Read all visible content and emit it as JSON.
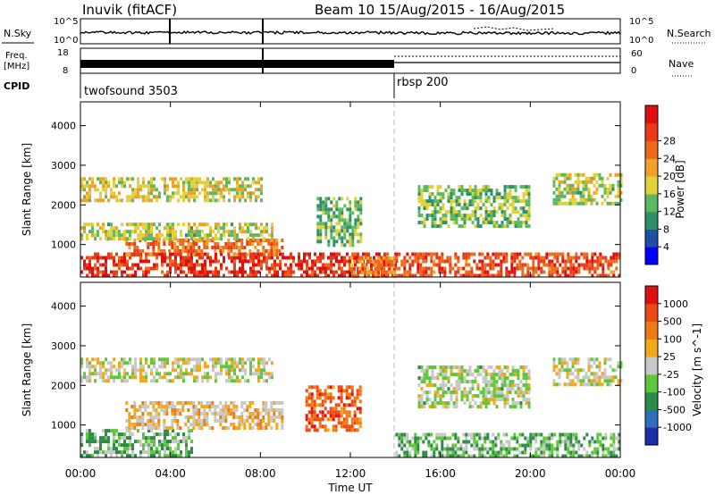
{
  "header": {
    "title": "Inuvik (fitACF)",
    "subtitle": "Beam 10  15/Aug/2015 - 16/Aug/2015"
  },
  "meta_panels": {
    "nsky_label": "N.Sky",
    "nsearch_label": "N.Search",
    "freq_label_line1": "Freq.",
    "freq_label_line2": "[MHz]",
    "nave_label": "Nave",
    "cpid_label": "CPID",
    "left_ticks_noise": [
      "10^5",
      "10^0"
    ],
    "right_ticks_noise": [
      "10^5",
      "10^0"
    ],
    "left_ticks_freq": [
      "18",
      "8"
    ],
    "right_ticks_nave": [
      "60",
      "0"
    ],
    "cpid_segments": [
      {
        "name": "twofsound 3503",
        "start_hour": 0
      },
      {
        "name": "rbsp 200",
        "start_hour": 14.1
      }
    ]
  },
  "chart_data": [
    {
      "type": "heatmap",
      "panel": "power",
      "xlabel": "",
      "ylabel": "Slant Range [km]",
      "xlim": [
        0,
        24
      ],
      "ylim": [
        180,
        4600
      ],
      "yticks": [
        1000,
        2000,
        3000,
        4000
      ],
      "colorbar": {
        "label": "Power [dB]",
        "ticks": [
          "4",
          "8",
          "12",
          "16",
          "20",
          "24",
          "28"
        ],
        "range": [
          0,
          30
        ],
        "colors": [
          "#0000ff",
          "#1d4fa8",
          "#2f8f6a",
          "#5db85f",
          "#e3d13a",
          "#f2a02a",
          "#ee6a1a",
          "#ea3a16",
          "#e01010"
        ]
      },
      "echo_regions": [
        {
          "t0": 0,
          "t1": 14.0,
          "r0": 200,
          "r1": 800,
          "level": 26
        },
        {
          "t0": 2,
          "t1": 9.0,
          "r0": 700,
          "r1": 1150,
          "level": 22
        },
        {
          "t0": 0,
          "t1": 8.5,
          "r0": 1100,
          "r1": 1550,
          "level": 14
        },
        {
          "t0": 0,
          "t1": 8.0,
          "r0": 2100,
          "r1": 2700,
          "level": 15
        },
        {
          "t0": 10.5,
          "t1": 12.5,
          "r0": 1000,
          "r1": 2200,
          "level": 11
        },
        {
          "t0": 12.0,
          "t1": 14.0,
          "r0": 200,
          "r1": 700,
          "level": 20
        },
        {
          "t0": 14.0,
          "t1": 24.0,
          "r0": 200,
          "r1": 800,
          "level": 24
        },
        {
          "t0": 15.0,
          "t1": 20.0,
          "r0": 1500,
          "r1": 2500,
          "level": 12
        },
        {
          "t0": 21.0,
          "t1": 24.0,
          "r0": 2000,
          "r1": 2800,
          "level": 14
        }
      ]
    },
    {
      "type": "heatmap",
      "panel": "velocity",
      "xlabel": "Time UT",
      "ylabel": "Slant Range [km]",
      "xlim": [
        0,
        24
      ],
      "ylim": [
        180,
        4600
      ],
      "xticks": [
        "00:00",
        "04:00",
        "08:00",
        "12:00",
        "16:00",
        "20:00",
        "00:00"
      ],
      "yticks": [
        1000,
        2000,
        3000,
        4000
      ],
      "colorbar": {
        "label": "Velocity [m s^-1]",
        "ticks": [
          "1000",
          "500",
          "100",
          "25",
          "-25",
          "-100",
          "-500",
          "-1000"
        ],
        "range": [
          -1200,
          1200
        ],
        "colors": [
          "#1a2fa8",
          "#2e6fbd",
          "#2c8a4a",
          "#5ec83a",
          "#c8c8c8",
          "#f2a81a",
          "#f07b14",
          "#ec4a12",
          "#e01010"
        ]
      },
      "echo_regions": [
        {
          "t0": 0,
          "t1": 5.0,
          "r0": 200,
          "r1": 900,
          "level": -300
        },
        {
          "t0": 2,
          "t1": 9.0,
          "r0": 900,
          "r1": 1600,
          "level": 200
        },
        {
          "t0": 0,
          "t1": 8.5,
          "r0": 2100,
          "r1": 2700,
          "level": 0
        },
        {
          "t0": 10.0,
          "t1": 12.5,
          "r0": 900,
          "r1": 2000,
          "level": 700
        },
        {
          "t0": 14.0,
          "t1": 24.0,
          "r0": 200,
          "r1": 800,
          "level": -300
        },
        {
          "t0": 15.0,
          "t1": 20.0,
          "r0": 1500,
          "r1": 2500,
          "level": -80
        },
        {
          "t0": 21.0,
          "t1": 24.0,
          "r0": 2000,
          "r1": 2700,
          "level": 0
        }
      ]
    }
  ]
}
